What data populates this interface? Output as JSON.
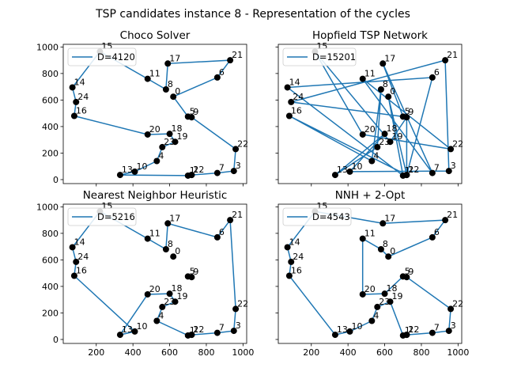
{
  "figure_title": "TSP candidates instance 8 - Representation of the cycles",
  "chart_data": {
    "type": "line",
    "x_ticks": [
      200,
      400,
      600,
      800,
      1000
    ],
    "y_ticks": [
      0,
      200,
      400,
      600,
      800,
      1000
    ],
    "xlim": [
      20,
      1020
    ],
    "ylim": [
      -30,
      1020
    ],
    "legend_position": "top-left",
    "line_color": "#1f77b4",
    "point_color": "#000000",
    "cities": [
      {
        "id": "0",
        "x": 620,
        "y": 625
      },
      {
        "id": "1",
        "x": 700,
        "y": 30
      },
      {
        "id": "2",
        "x": 720,
        "y": 35
      },
      {
        "id": "3",
        "x": 950,
        "y": 65
      },
      {
        "id": "4",
        "x": 530,
        "y": 140
      },
      {
        "id": "5",
        "x": 700,
        "y": 475
      },
      {
        "id": "6",
        "x": 860,
        "y": 770
      },
      {
        "id": "7",
        "x": 860,
        "y": 50
      },
      {
        "id": "8",
        "x": 580,
        "y": 680
      },
      {
        "id": "9",
        "x": 720,
        "y": 470
      },
      {
        "id": "10",
        "x": 410,
        "y": 60
      },
      {
        "id": "11",
        "x": 480,
        "y": 760
      },
      {
        "id": "12",
        "x": 720,
        "y": 35
      },
      {
        "id": "13",
        "x": 330,
        "y": 35
      },
      {
        "id": "14",
        "x": 70,
        "y": 695
      },
      {
        "id": "15",
        "x": 220,
        "y": 965
      },
      {
        "id": "16",
        "x": 80,
        "y": 480
      },
      {
        "id": "17",
        "x": 590,
        "y": 875
      },
      {
        "id": "18",
        "x": 600,
        "y": 345
      },
      {
        "id": "19",
        "x": 630,
        "y": 285
      },
      {
        "id": "20",
        "x": 480,
        "y": 340
      },
      {
        "id": "21",
        "x": 930,
        "y": 900
      },
      {
        "id": "22",
        "x": 960,
        "y": 230
      },
      {
        "id": "23",
        "x": 560,
        "y": 245
      },
      {
        "id": "24",
        "x": 90,
        "y": 585
      }
    ],
    "panels": [
      {
        "title": "Choco Solver",
        "legend": "D=4120",
        "tour": [
          "15",
          "11",
          "8",
          "17",
          "21",
          "6",
          "0",
          "5",
          "9",
          "22",
          "3",
          "7",
          "12",
          "2",
          "1",
          "13",
          "10",
          "4",
          "23",
          "19",
          "18",
          "20",
          "16",
          "24",
          "14",
          "15"
        ]
      },
      {
        "title": "Hopfield TSP Network",
        "legend": "D=15201",
        "tour": [
          "15",
          "20",
          "22",
          "11",
          "7",
          "17",
          "5",
          "24",
          "21",
          "3",
          "10",
          "18",
          "13",
          "23",
          "8",
          "4",
          "16",
          "2",
          "6",
          "14",
          "1",
          "0",
          "12",
          "9",
          "19",
          "15"
        ]
      },
      {
        "title": "Nearest Neighbor Heuristic",
        "legend": "D=5216",
        "tour": [
          "15",
          "11",
          "8",
          "17",
          "6",
          "21",
          "22",
          "3",
          "7",
          "12",
          "2",
          "1",
          "4",
          "23",
          "19",
          "18",
          "20",
          "13",
          "10",
          "16",
          "24",
          "14",
          "15"
        ]
      },
      {
        "title": "NNH + 2-Opt",
        "legend": "D=4543",
        "tour": [
          "15",
          "17",
          "21",
          "6",
          "0",
          "8",
          "11",
          "20",
          "18",
          "5",
          "9",
          "22",
          "3",
          "7",
          "12",
          "2",
          "1",
          "19",
          "23",
          "4",
          "10",
          "13",
          "16",
          "24",
          "14",
          "15"
        ]
      }
    ]
  }
}
